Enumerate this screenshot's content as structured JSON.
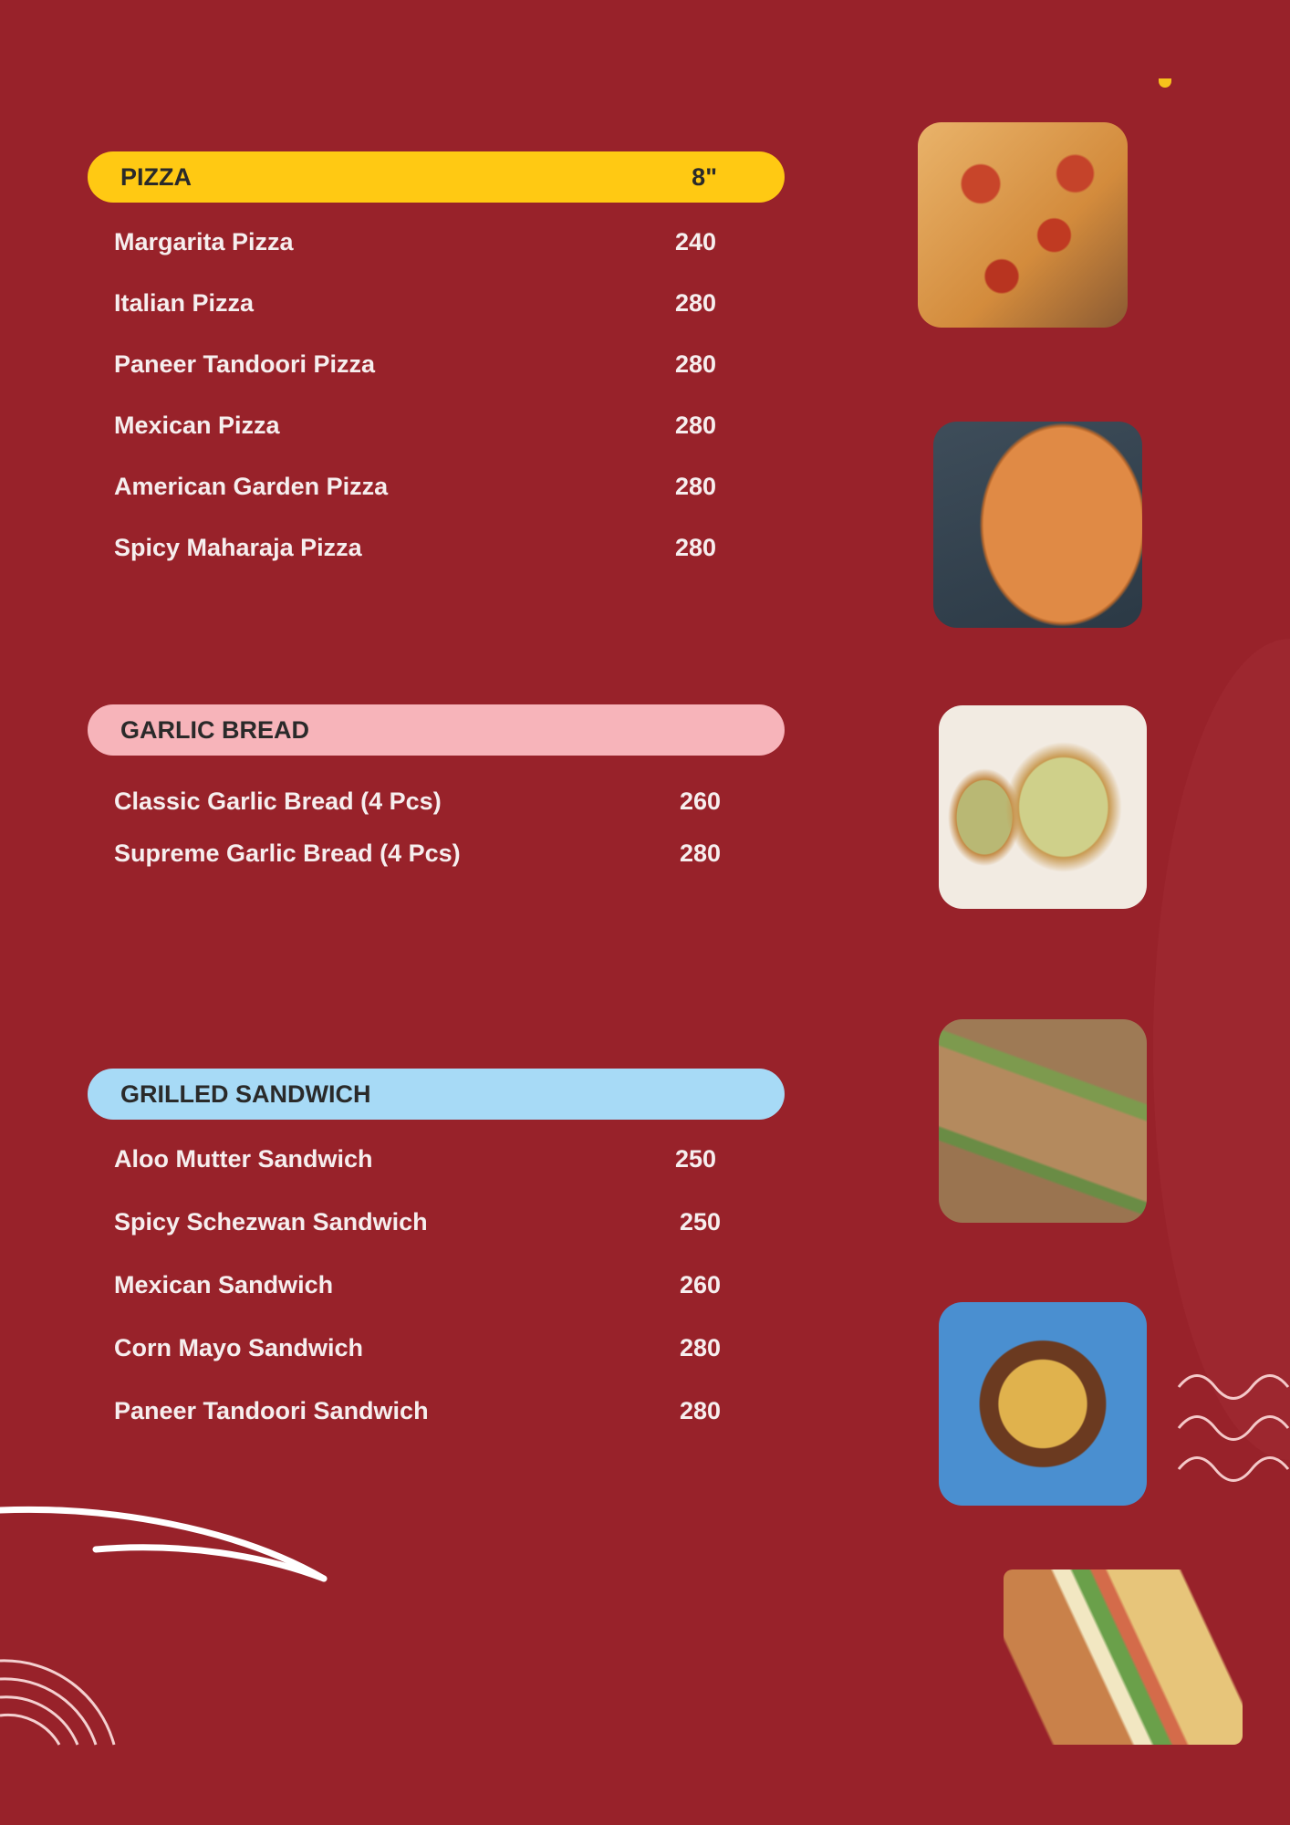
{
  "colors": {
    "background": "#98222a",
    "pizza_header": "#ffc913",
    "garlic_header": "#f7b4ba",
    "sandwich_header": "#a7daf6",
    "text": "#f6eeee"
  },
  "sections": [
    {
      "title": "PIZZA",
      "size": "8\"",
      "items": [
        {
          "name": "Margarita Pizza",
          "price": "240"
        },
        {
          "name": "Italian Pizza",
          "price": "280"
        },
        {
          "name": "Paneer Tandoori Pizza",
          "price": "280"
        },
        {
          "name": "Mexican Pizza",
          "price": "280"
        },
        {
          "name": "American Garden Pizza",
          "price": "280"
        },
        {
          "name": "Spicy Maharaja Pizza",
          "price": "280"
        }
      ]
    },
    {
      "title": "GARLIC BREAD",
      "items": [
        {
          "name": "Classic Garlic Bread (4 Pcs)",
          "price": "260"
        },
        {
          "name": "Supreme Garlic Bread (4 Pcs)",
          "price": "280"
        }
      ]
    },
    {
      "title": "GRILLED SANDWICH",
      "items": [
        {
          "name": "Aloo Mutter Sandwich",
          "price": "250"
        },
        {
          "name": "Spicy Schezwan Sandwich",
          "price": "250"
        },
        {
          "name": "Mexican Sandwich",
          "price": "260"
        },
        {
          "name": "Corn Mayo Sandwich",
          "price": "280"
        },
        {
          "name": "Paneer Tandoori Sandwich",
          "price": "280"
        }
      ]
    }
  ],
  "images": [
    "pepperoni-pizza-photo",
    "veg-pizza-photo",
    "garlic-bread-photo",
    "grilled-sandwich-photo",
    "sandwich-bowl-photo",
    "club-sandwich-illustration"
  ]
}
